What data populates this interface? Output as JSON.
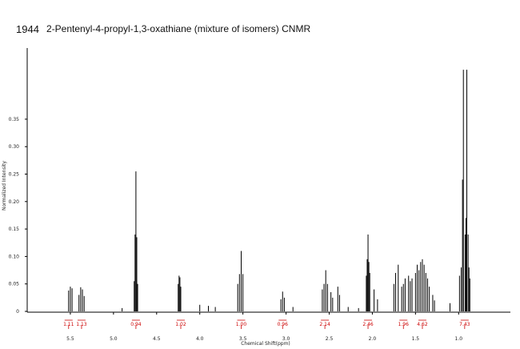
{
  "header": {
    "id": "1944",
    "title": "2-Pentenyl-4-propyl-1,3-oxathiane (mixture of isomers) CNMR"
  },
  "chart_data": {
    "type": "line",
    "title": "2-Pentenyl-4-propyl-1,3-oxathiane (mixture of isomers) CNMR",
    "xlabel": "Chemical Shift(ppm)",
    "ylabel": "Normalized Intensity",
    "x_reversed": true,
    "xlim": [
      6.0,
      0.4
    ],
    "ylim": [
      -0.02,
      0.46
    ],
    "x_ticks": [
      {
        "value": 5.5,
        "label": "5.5"
      },
      {
        "value": 5.0,
        "label": "5.0"
      },
      {
        "value": 4.5,
        "label": "4.5"
      },
      {
        "value": 4.0,
        "label": "4.0"
      },
      {
        "value": 3.5,
        "label": "3.5"
      },
      {
        "value": 3.0,
        "label": "3.0"
      },
      {
        "value": 2.5,
        "label": "2.5"
      },
      {
        "value": 2.0,
        "label": "2.0"
      },
      {
        "value": 1.5,
        "label": "1.5"
      },
      {
        "value": 1.0,
        "label": "1.0"
      }
    ],
    "y_ticks": [
      {
        "value": 0.0,
        "label": "0"
      },
      {
        "value": 0.05,
        "label": "0.05"
      },
      {
        "value": 0.1,
        "label": "0.10"
      },
      {
        "value": 0.15,
        "label": "0.15"
      },
      {
        "value": 0.2,
        "label": "0.20"
      },
      {
        "value": 0.25,
        "label": "0.25"
      },
      {
        "value": 0.3,
        "label": "0.30"
      },
      {
        "value": 0.35,
        "label": "0.35"
      }
    ],
    "peaks": [
      {
        "x": 5.52,
        "y": 0.038
      },
      {
        "x": 5.5,
        "y": 0.045
      },
      {
        "x": 5.48,
        "y": 0.042
      },
      {
        "x": 5.4,
        "y": 0.03
      },
      {
        "x": 5.38,
        "y": 0.044
      },
      {
        "x": 5.36,
        "y": 0.04
      },
      {
        "x": 5.34,
        "y": 0.028
      },
      {
        "x": 4.9,
        "y": 0.006
      },
      {
        "x": 4.76,
        "y": 0.055
      },
      {
        "x": 4.75,
        "y": 0.14
      },
      {
        "x": 4.74,
        "y": 0.255
      },
      {
        "x": 4.73,
        "y": 0.135
      },
      {
        "x": 4.72,
        "y": 0.05
      },
      {
        "x": 4.25,
        "y": 0.05
      },
      {
        "x": 4.24,
        "y": 0.065
      },
      {
        "x": 4.23,
        "y": 0.062
      },
      {
        "x": 4.22,
        "y": 0.045
      },
      {
        "x": 4.0,
        "y": 0.012
      },
      {
        "x": 3.9,
        "y": 0.01
      },
      {
        "x": 3.82,
        "y": 0.008
      },
      {
        "x": 3.56,
        "y": 0.05
      },
      {
        "x": 3.54,
        "y": 0.068
      },
      {
        "x": 3.52,
        "y": 0.11
      },
      {
        "x": 3.5,
        "y": 0.068
      },
      {
        "x": 3.06,
        "y": 0.022
      },
      {
        "x": 3.04,
        "y": 0.036
      },
      {
        "x": 3.02,
        "y": 0.025
      },
      {
        "x": 2.92,
        "y": 0.008
      },
      {
        "x": 2.58,
        "y": 0.04
      },
      {
        "x": 2.56,
        "y": 0.05
      },
      {
        "x": 2.54,
        "y": 0.075
      },
      {
        "x": 2.52,
        "y": 0.05
      },
      {
        "x": 2.48,
        "y": 0.035
      },
      {
        "x": 2.46,
        "y": 0.025
      },
      {
        "x": 2.4,
        "y": 0.045
      },
      {
        "x": 2.38,
        "y": 0.03
      },
      {
        "x": 2.28,
        "y": 0.008
      },
      {
        "x": 2.16,
        "y": 0.006
      },
      {
        "x": 2.07,
        "y": 0.065
      },
      {
        "x": 2.06,
        "y": 0.095
      },
      {
        "x": 2.05,
        "y": 0.14
      },
      {
        "x": 2.04,
        "y": 0.09
      },
      {
        "x": 2.03,
        "y": 0.07
      },
      {
        "x": 1.98,
        "y": 0.04
      },
      {
        "x": 1.94,
        "y": 0.022
      },
      {
        "x": 1.75,
        "y": 0.05
      },
      {
        "x": 1.73,
        "y": 0.07
      },
      {
        "x": 1.7,
        "y": 0.085
      },
      {
        "x": 1.66,
        "y": 0.045
      },
      {
        "x": 1.64,
        "y": 0.05
      },
      {
        "x": 1.62,
        "y": 0.06
      },
      {
        "x": 1.58,
        "y": 0.065
      },
      {
        "x": 1.56,
        "y": 0.055
      },
      {
        "x": 1.54,
        "y": 0.06
      },
      {
        "x": 1.5,
        "y": 0.07
      },
      {
        "x": 1.48,
        "y": 0.085
      },
      {
        "x": 1.46,
        "y": 0.075
      },
      {
        "x": 1.44,
        "y": 0.09
      },
      {
        "x": 1.42,
        "y": 0.095
      },
      {
        "x": 1.4,
        "y": 0.085
      },
      {
        "x": 1.38,
        "y": 0.07
      },
      {
        "x": 1.36,
        "y": 0.06
      },
      {
        "x": 1.34,
        "y": 0.045
      },
      {
        "x": 1.3,
        "y": 0.03
      },
      {
        "x": 1.28,
        "y": 0.02
      },
      {
        "x": 1.1,
        "y": 0.015
      },
      {
        "x": 0.99,
        "y": 0.065
      },
      {
        "x": 0.97,
        "y": 0.08
      },
      {
        "x": 0.955,
        "y": 0.24
      },
      {
        "x": 0.945,
        "y": 0.44
      },
      {
        "x": 0.925,
        "y": 0.14
      },
      {
        "x": 0.915,
        "y": 0.17
      },
      {
        "x": 0.905,
        "y": 0.44
      },
      {
        "x": 0.89,
        "y": 0.14
      },
      {
        "x": 0.88,
        "y": 0.08
      },
      {
        "x": 0.87,
        "y": 0.06
      }
    ],
    "integrations": [
      {
        "x": 5.52,
        "label": "1.11"
      },
      {
        "x": 5.37,
        "label": "1.13"
      },
      {
        "x": 4.74,
        "label": "0.94"
      },
      {
        "x": 4.22,
        "label": "1.02"
      },
      {
        "x": 3.52,
        "label": "1.00"
      },
      {
        "x": 3.04,
        "label": "0.96"
      },
      {
        "x": 2.55,
        "label": "2.14"
      },
      {
        "x": 2.05,
        "label": "2.46"
      },
      {
        "x": 1.64,
        "label": "1.96"
      },
      {
        "x": 1.42,
        "label": "4.62"
      },
      {
        "x": 0.93,
        "label": "7.43"
      }
    ],
    "colors": {
      "spectrum": "#000000",
      "integral": "#cc0000",
      "axis": "#000000"
    }
  }
}
